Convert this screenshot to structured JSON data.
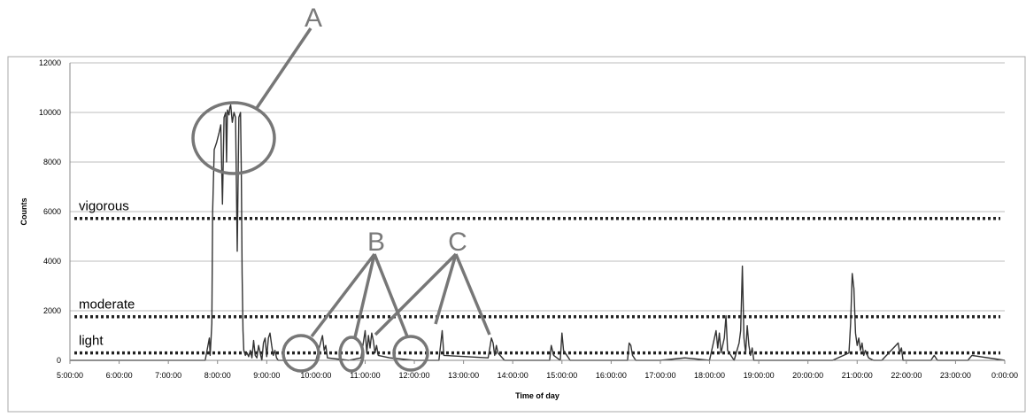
{
  "chart_data": {
    "type": "line",
    "title": "",
    "xlabel": "Time of day",
    "ylabel": "Counts",
    "ylim": [
      0,
      12000
    ],
    "xlim": [
      "5:00:00",
      "0:00:00"
    ],
    "grid": "horizontal",
    "y_ticks": [
      "0",
      "2000",
      "4000",
      "6000",
      "8000",
      "10000",
      "12000"
    ],
    "x_ticks": [
      "5:00:00",
      "6:00:00",
      "7:00:00",
      "8:00:00",
      "9:00:00",
      "10:00:00",
      "11:00:00",
      "12:00:00",
      "13:00:00",
      "14:00:00",
      "15:00:00",
      "16:00:00",
      "17:00:00",
      "18:00:00",
      "19:00:00",
      "20:00:00",
      "21:00:00",
      "22:00:00",
      "23:00:00",
      "0:00:00"
    ],
    "thresholds": [
      {
        "label": "vigorous",
        "value": 5724
      },
      {
        "label": "moderate",
        "value": 1760
      },
      {
        "label": "light",
        "value": 300
      }
    ],
    "annotation_labels": [
      "A",
      "B",
      "C"
    ],
    "series": [
      {
        "x": [
          "5:00:00",
          "7:45:00",
          "7:50:00",
          "7:51:00",
          "7:52:00",
          "7:53:00",
          "7:54:00",
          "7:56:00",
          "7:59:00",
          "8:02:00",
          "8:04:00",
          "8:06:00",
          "8:08:00",
          "8:10:00",
          "8:11:00",
          "8:12:00",
          "8:14:00",
          "8:15:00",
          "8:16:00",
          "8:18:00",
          "8:20:00",
          "8:22:00",
          "8:24:00",
          "8:26:00",
          "8:28:00",
          "8:29:00",
          "8:30:00",
          "8:31:00",
          "8:32:00",
          "8:34:00",
          "8:36:00",
          "8:38:00",
          "8:40:00",
          "8:42:00",
          "8:44:00",
          "8:46:00",
          "8:48:00",
          "8:50:00",
          "8:52:00",
          "8:54:00",
          "8:56:00",
          "8:58:00",
          "9:00:00",
          "9:02:00",
          "9:04:00",
          "9:06:00",
          "9:08:00",
          "9:10:00",
          "9:12:00",
          "9:14:00",
          "9:20:00",
          "10:00:00",
          "10:08:00",
          "10:10:00",
          "10:12:00",
          "10:14:00",
          "10:40:00",
          "10:55:00",
          "11:00:00",
          "11:02:00",
          "11:04:00",
          "11:06:00",
          "11:08:00",
          "11:10:00",
          "11:12:00",
          "11:14:00",
          "11:16:00",
          "11:30:00",
          "12:00:00",
          "12:30:00",
          "12:34:00",
          "12:36:00",
          "13:30:00",
          "13:32:00",
          "13:34:00",
          "13:36:00",
          "13:38:00",
          "13:40:00",
          "13:42:00",
          "13:50:00",
          "14:45:00",
          "14:47:00",
          "14:50:00",
          "14:58:00",
          "15:00:00",
          "15:02:00",
          "15:10:00",
          "16:20:00",
          "16:22:00",
          "16:24:00",
          "16:26:00",
          "16:30:00",
          "17:00:00",
          "17:30:00",
          "18:00:00",
          "18:08:00",
          "18:10:00",
          "18:12:00",
          "18:14:00",
          "18:18:00",
          "18:20:00",
          "18:22:00",
          "18:30:00",
          "18:36:00",
          "18:38:00",
          "18:40:00",
          "18:42:00",
          "18:44:00",
          "18:46:00",
          "18:48:00",
          "18:50:00",
          "18:52:00",
          "18:54:00",
          "19:00:00",
          "19:30:00",
          "20:00:00",
          "20:30:00",
          "20:50:00",
          "20:52:00",
          "20:54:00",
          "20:56:00",
          "20:58:00",
          "21:00:00",
          "21:02:00",
          "21:04:00",
          "21:06:00",
          "21:08:00",
          "21:10:00",
          "21:14:00",
          "21:20:00",
          "21:30:00",
          "21:50:00",
          "21:52:00",
          "21:54:00",
          "21:56:00",
          "22:00:00",
          "22:30:00",
          "22:34:00",
          "22:38:00",
          "23:00:00",
          "23:15:00",
          "23:20:00",
          "0:00:00"
        ],
        "y": [
          0,
          0,
          900,
          200,
          800,
          1500,
          6000,
          8500,
          8800,
          9200,
          9500,
          6300,
          9800,
          10000,
          8000,
          10100,
          9900,
          10200,
          10300,
          9600,
          10000,
          9800,
          4400,
          9800,
          10000,
          7600,
          3500,
          1200,
          400,
          200,
          300,
          150,
          400,
          100,
          800,
          200,
          100,
          600,
          300,
          0,
          700,
          900,
          150,
          900,
          1100,
          600,
          200,
          400,
          100,
          0,
          0,
          0,
          1000,
          400,
          600,
          100,
          0,
          100,
          1200,
          300,
          1000,
          500,
          1100,
          800,
          300,
          600,
          200,
          100,
          0,
          0,
          1200,
          200,
          100,
          500,
          900,
          700,
          200,
          600,
          300,
          0,
          0,
          600,
          200,
          0,
          1100,
          400,
          0,
          0,
          700,
          600,
          200,
          0,
          0,
          100,
          0,
          1200,
          500,
          1100,
          300,
          900,
          1800,
          400,
          0,
          700,
          1200,
          3800,
          900,
          300,
          1400,
          600,
          200,
          500,
          0,
          0,
          0,
          0,
          0,
          300,
          1500,
          3500,
          2900,
          1100,
          600,
          900,
          400,
          700,
          200,
          400,
          100,
          0,
          0,
          700,
          300,
          500,
          0,
          0,
          0,
          200,
          0,
          0,
          0,
          200,
          0
        ]
      }
    ]
  }
}
